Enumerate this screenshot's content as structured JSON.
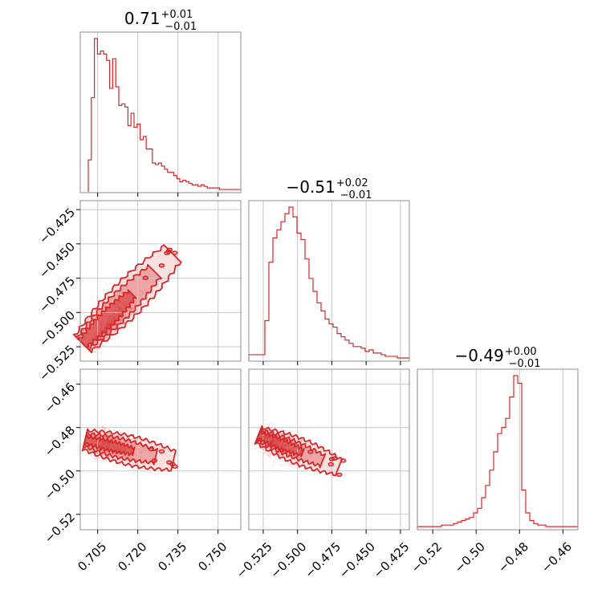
{
  "chart_data": {
    "type": "corner",
    "color": "#d62728",
    "parameters": [
      {
        "title": {
          "main": "0.71",
          "sup": "+0.01",
          "sub": "−0.01"
        },
        "range": [
          0.6985,
          0.7585
        ],
        "ticks": [
          0.705,
          0.72,
          0.735,
          0.75
        ],
        "tick_labels": [
          "0.705",
          "0.720",
          "0.735",
          "0.750"
        ]
      },
      {
        "title": {
          "main": "−0.51",
          "sup": "+0.02",
          "sub": "−0.01"
        },
        "range": [
          -0.5355,
          -0.4185
        ],
        "ticks": [
          -0.525,
          -0.5,
          -0.475,
          -0.45,
          -0.425
        ],
        "tick_labels": [
          "−0.525",
          "−0.500",
          "−0.475",
          "−0.450",
          "−0.425"
        ]
      },
      {
        "title": {
          "main": "−0.49",
          "sup": "+0.00",
          "sub": "−0.01"
        },
        "range": [
          -0.5271,
          -0.4531
        ],
        "ticks": [
          -0.52,
          -0.5,
          -0.48,
          -0.46
        ],
        "tick_labels": [
          "−0.52",
          "−0.50",
          "−0.48",
          "−0.46"
        ]
      }
    ],
    "histograms": [
      {
        "param": 0,
        "bin_range": [
          0.7015,
          0.7585
        ],
        "counts": [
          20,
          60,
          98,
          88,
          90,
          88,
          84,
          66,
          85,
          67,
          55,
          56,
          54,
          42,
          50,
          41,
          43,
          33,
          35,
          27,
          27,
          18,
          17,
          18,
          16,
          14,
          12,
          12,
          10,
          8,
          6,
          7,
          6,
          5,
          4,
          4,
          3,
          4,
          3,
          2,
          2,
          2,
          2,
          1,
          1,
          1,
          1,
          1,
          1,
          1
        ]
      },
      {
        "param": 1,
        "bin_range": [
          -0.5355,
          -0.4185
        ],
        "counts": [
          3,
          3,
          3,
          3,
          24,
          60,
          75,
          80,
          85,
          90,
          94,
          88,
          78,
          74,
          62,
          50,
          42,
          35,
          30,
          25,
          22,
          20,
          16,
          14,
          12,
          10,
          8,
          8,
          7,
          5,
          6,
          4,
          4,
          3,
          2,
          2,
          2,
          1,
          1,
          1
        ]
      },
      {
        "param": 2,
        "bin_range": [
          -0.5271,
          -0.4531
        ],
        "counts": [
          1,
          1,
          1,
          1,
          1,
          1,
          2,
          2,
          2,
          3,
          4,
          5,
          6,
          7,
          10,
          13,
          20,
          28,
          38,
          50,
          62,
          66,
          72,
          86,
          100,
          95,
          25,
          10,
          5,
          3,
          2,
          2,
          1,
          1,
          1,
          1,
          1,
          1,
          1,
          1
        ]
      }
    ],
    "pair_plots": [
      {
        "x_param": 0,
        "y_param": 1,
        "relation": "strong positive correlation",
        "peak": [
          0.703,
          -0.523
        ]
      },
      {
        "x_param": 0,
        "y_param": 2,
        "relation": "weak negative correlation",
        "peak": [
          0.703,
          -0.487
        ]
      },
      {
        "x_param": 1,
        "y_param": 2,
        "relation": "negative correlation",
        "peak": [
          -0.529,
          -0.485
        ]
      }
    ],
    "grid": true
  }
}
